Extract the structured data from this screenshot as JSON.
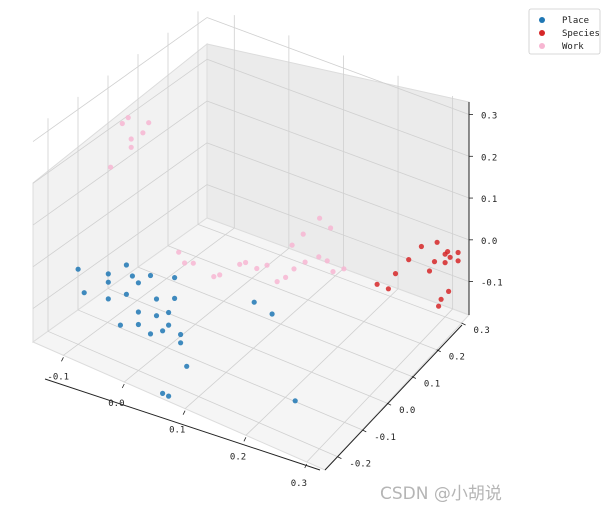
{
  "chart_data": {
    "type": "scatter",
    "dimensions": 3,
    "title": "",
    "xlabel": "",
    "ylabel": "",
    "zlabel": "",
    "x_ticks": [
      "-0.1",
      "0.0",
      "0.1",
      "0.2",
      "0.3"
    ],
    "y_ticks": [
      "-0.2",
      "-0.1",
      "0.0",
      "0.1",
      "0.2",
      "0.3"
    ],
    "z_ticks": [
      "-0.1",
      "0.0",
      "0.1",
      "0.2",
      "0.3"
    ],
    "xlim": [
      -0.15,
      0.33
    ],
    "ylim": [
      -0.25,
      0.33
    ],
    "zlim": [
      -0.18,
      0.33
    ],
    "grid": true,
    "legend_position": "top-right",
    "series": [
      {
        "name": "Place",
        "color": "#1f77b4",
        "points": [
          [
            -0.1,
            -0.2,
            0.0
          ],
          [
            -0.09,
            -0.2,
            -0.05
          ],
          [
            -0.05,
            -0.2,
            0.0
          ],
          [
            -0.05,
            -0.2,
            0.02
          ],
          [
            -0.05,
            -0.2,
            -0.04
          ],
          [
            -0.02,
            -0.2,
            -0.01
          ],
          [
            -0.03,
            -0.2,
            -0.09
          ],
          [
            -0.02,
            -0.2,
            0.06
          ],
          [
            -0.01,
            -0.2,
            0.04
          ],
          [
            0.0,
            -0.2,
            -0.04
          ],
          [
            0.0,
            -0.2,
            -0.07
          ],
          [
            0.0,
            -0.2,
            0.03
          ],
          [
            0.02,
            -0.2,
            -0.08
          ],
          [
            0.02,
            -0.2,
            0.06
          ],
          [
            0.03,
            -0.2,
            -0.03
          ],
          [
            0.03,
            -0.2,
            0.01
          ],
          [
            0.04,
            -0.2,
            -0.06
          ],
          [
            0.05,
            -0.2,
            -0.04
          ],
          [
            0.05,
            -0.2,
            -0.01
          ],
          [
            0.06,
            -0.2,
            0.08
          ],
          [
            0.06,
            -0.2,
            0.03
          ],
          [
            0.07,
            -0.2,
            -0.05
          ],
          [
            0.07,
            -0.2,
            -0.07
          ],
          [
            0.08,
            -0.2,
            -0.12
          ],
          [
            0.04,
            -0.2,
            -0.21
          ],
          [
            0.05,
            -0.2,
            -0.21
          ],
          [
            0.17,
            -0.15,
            0.06
          ],
          [
            0.2,
            -0.15,
            0.05
          ],
          [
            0.26,
            -0.2,
            -0.09
          ]
        ]
      },
      {
        "name": "Species",
        "color": "#d62728",
        "points": [
          [
            0.26,
            0.12,
            -0.01
          ],
          [
            0.28,
            0.12,
            -0.01
          ],
          [
            0.27,
            0.17,
            -0.01
          ],
          [
            0.28,
            0.2,
            0.01
          ],
          [
            0.28,
            0.25,
            0.01
          ],
          [
            0.29,
            0.26,
            -0.05
          ],
          [
            0.29,
            0.28,
            -0.04
          ],
          [
            0.29,
            0.29,
            0.0
          ],
          [
            0.3,
            0.3,
            -0.03
          ],
          [
            0.3,
            0.31,
            -0.03
          ],
          [
            0.3,
            0.3,
            -0.05
          ],
          [
            0.3,
            0.32,
            -0.05
          ],
          [
            0.31,
            0.33,
            -0.06
          ],
          [
            0.31,
            0.33,
            -0.04
          ],
          [
            0.32,
            0.27,
            -0.09
          ],
          [
            0.32,
            0.24,
            -0.09
          ],
          [
            0.32,
            0.23,
            -0.1
          ]
        ]
      },
      {
        "name": "Work",
        "color": "#f7b6d2",
        "points": [
          [
            -0.1,
            -0.05,
            0.27
          ],
          [
            -0.09,
            -0.05,
            0.29
          ],
          [
            -0.08,
            -0.06,
            0.25
          ],
          [
            -0.08,
            -0.06,
            0.23
          ],
          [
            -0.07,
            -0.04,
            0.26
          ],
          [
            -0.06,
            -0.04,
            0.29
          ],
          [
            -0.11,
            -0.07,
            0.17
          ],
          [
            0.02,
            -0.1,
            0.06
          ],
          [
            0.03,
            -0.1,
            0.04
          ],
          [
            0.04,
            -0.09,
            0.04
          ],
          [
            0.07,
            -0.08,
            0.02
          ],
          [
            0.08,
            -0.08,
            0.03
          ],
          [
            0.1,
            -0.05,
            0.05
          ],
          [
            0.11,
            -0.05,
            0.06
          ],
          [
            0.12,
            -0.03,
            0.04
          ],
          [
            0.15,
            -0.02,
            0.02
          ],
          [
            0.16,
            -0.01,
            0.03
          ],
          [
            0.17,
            0.0,
            0.05
          ],
          [
            0.18,
            0.02,
            0.06
          ],
          [
            0.19,
            0.05,
            0.06
          ],
          [
            0.2,
            0.06,
            0.05
          ],
          [
            0.21,
            0.06,
            0.03
          ],
          [
            0.22,
            0.08,
            0.03
          ],
          [
            0.1,
            0.05,
            -0.01
          ],
          [
            0.12,
            0.1,
            0.02
          ],
          [
            0.13,
            0.12,
            0.04
          ],
          [
            0.14,
            0.16,
            0.06
          ],
          [
            0.15,
            0.18,
            0.03
          ]
        ]
      }
    ]
  },
  "watermark": "CSDN @小胡说"
}
